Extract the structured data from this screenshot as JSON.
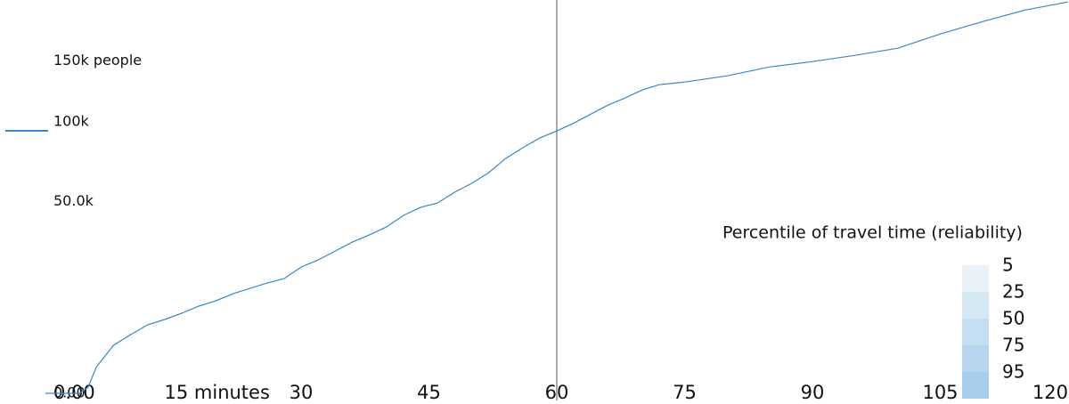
{
  "chart_data": {
    "type": "line",
    "x": [
      0,
      4,
      5,
      6,
      7,
      8,
      10,
      12,
      14,
      16,
      18,
      20,
      22,
      24,
      26,
      28,
      30,
      32,
      34,
      36,
      38,
      40,
      42,
      44,
      46,
      48,
      50,
      52,
      54,
      56,
      58,
      60,
      62,
      64,
      66,
      68,
      70,
      72,
      75,
      80,
      85,
      90,
      95,
      100,
      105,
      110,
      115,
      120
    ],
    "series": [
      {
        "color": "#3d85c6",
        "values": [
          0,
          0,
          50,
          966,
          1894,
          3131,
          4678,
          6367,
          7398,
          8698,
          10313,
          11615,
          13470,
          14951,
          16512,
          17869,
          21654,
          24161,
          27491,
          31034,
          34024,
          37551,
          42955,
          46907,
          49180,
          54850,
          59830,
          66050,
          74840,
          81810,
          88450,
          93440,
          99120,
          105870,
          112720,
          118370,
          124860,
          129310,
          131550,
          136860,
          144600,
          149420,
          155080,
          161650,
          175280,
          187620,
          199470,
          207900
        ]
      }
    ],
    "xlim": [
      0,
      120
    ],
    "xticks": [
      {
        "value": 0,
        "label": "0.00"
      },
      {
        "value": 15,
        "label": "15 minutes"
      },
      30,
      45,
      60,
      75,
      90,
      105,
      120
    ],
    "ylim": [
      0,
      210000
    ],
    "yscale": "sqrt",
    "yticks": [
      {
        "value": 0,
        "label": "0.00"
      },
      {
        "value": 50000,
        "label": "50.0k"
      },
      {
        "value": 100000,
        "label": "100k"
      },
      {
        "value": 150000,
        "label": "150k people"
      }
    ],
    "cutoff": 60,
    "legend_title": "Percentile of travel time (reliability)",
    "percentiles": [
      {
        "label": "5",
        "color": "#e9f1f9"
      },
      {
        "label": "25",
        "color": "#d7e8f5"
      },
      {
        "label": "50",
        "color": "#c6def2"
      },
      {
        "label": "75",
        "color": "#b7d5ef"
      },
      {
        "label": "95",
        "color": "#a9cdec"
      }
    ]
  }
}
